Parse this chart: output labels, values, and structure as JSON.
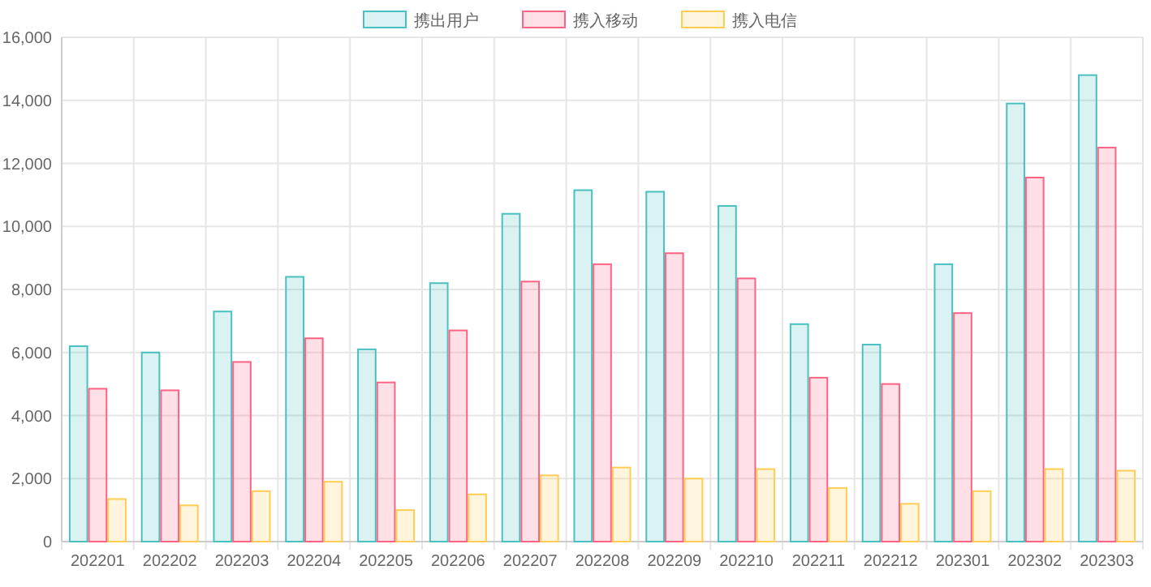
{
  "chart_data": {
    "type": "bar",
    "categories": [
      "202201",
      "202202",
      "202203",
      "202204",
      "202205",
      "202206",
      "202207",
      "202208",
      "202209",
      "202210",
      "202211",
      "202212",
      "202301",
      "202302",
      "202303"
    ],
    "series": [
      {
        "name": "携出用户",
        "color": "#4bc0c0",
        "values": [
          6200,
          6000,
          7300,
          8400,
          6100,
          8200,
          10400,
          11150,
          11100,
          10650,
          6900,
          6250,
          8800,
          13900,
          14800
        ]
      },
      {
        "name": "携入移动",
        "color": "#ff6384",
        "values": [
          4850,
          4800,
          5700,
          6450,
          5050,
          6700,
          8250,
          8800,
          9150,
          8350,
          5200,
          5000,
          7250,
          11550,
          12500
        ]
      },
      {
        "name": "携入电信",
        "color": "#ffcd56",
        "values": [
          1350,
          1150,
          1600,
          1900,
          1000,
          1500,
          2100,
          2350,
          2000,
          2300,
          1700,
          1200,
          1600,
          2300,
          2250
        ]
      }
    ],
    "ylim": [
      0,
      16000
    ],
    "yticks": [
      {
        "value": 0,
        "label": "0"
      },
      {
        "value": 2000,
        "label": "2,000"
      },
      {
        "value": 4000,
        "label": "4,000"
      },
      {
        "value": 6000,
        "label": "6,000"
      },
      {
        "value": 8000,
        "label": "8,000"
      },
      {
        "value": 10000,
        "label": "10,000"
      },
      {
        "value": 12000,
        "label": "12,000"
      },
      {
        "value": 14000,
        "label": "14,000"
      },
      {
        "value": 16000,
        "label": "16,000"
      }
    ],
    "grid": true,
    "legend": "top"
  }
}
